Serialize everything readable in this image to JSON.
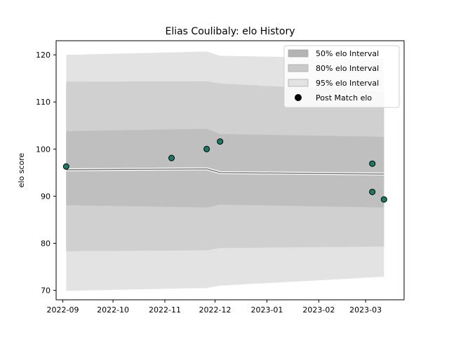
{
  "chart_data": {
    "type": "area",
    "title": "Elias Coulibaly: elo History",
    "xlabel": "",
    "ylabel": "elo score",
    "ylim": [
      68,
      123
    ],
    "xlim": [
      "2022-08-28",
      "2023-03-24"
    ],
    "x_ticks": [
      "2022-09",
      "2022-10",
      "2022-11",
      "2022-12",
      "2023-01",
      "2023-02",
      "2023-03"
    ],
    "y_ticks": [
      70,
      80,
      90,
      100,
      110,
      120
    ],
    "grid": false,
    "legend_placement": "top-right",
    "band_dates": [
      "2022-09-03",
      "2022-11-26",
      "2022-12-04",
      "2023-03-12"
    ],
    "mean": [
      95.6,
      95.8,
      95.0,
      94.7
    ],
    "bands": [
      {
        "name": "95% elo Interval",
        "color": "#e3e3e3",
        "upper": [
          120.0,
          120.7,
          119.8,
          119.2
        ],
        "lower": [
          69.9,
          70.5,
          71.0,
          72.9
        ]
      },
      {
        "name": "80% elo Interval",
        "color": "#d0d0d0",
        "upper": [
          114.3,
          114.4,
          113.9,
          112.2
        ],
        "lower": [
          78.3,
          78.5,
          79.0,
          79.3
        ]
      },
      {
        "name": "50% elo Interval",
        "color": "#bfbfbf",
        "upper": [
          103.8,
          104.3,
          103.2,
          102.6
        ],
        "lower": [
          88.1,
          87.6,
          88.2,
          87.6
        ]
      }
    ],
    "points": {
      "name": "Post Match elo",
      "color": "#1a7a6a",
      "dates": [
        "2022-09-03",
        "2022-11-05",
        "2022-11-26",
        "2022-12-04",
        "2023-03-05",
        "2023-03-05",
        "2023-03-12"
      ],
      "values": [
        96.3,
        98.1,
        100.0,
        101.6,
        96.9,
        90.9,
        89.3
      ]
    },
    "legend": [
      {
        "label": "50% elo Interval",
        "kind": "patch",
        "color": "#b4b4b4"
      },
      {
        "label": "80% elo Interval",
        "kind": "patch",
        "color": "#cacaca"
      },
      {
        "label": "95% elo Interval",
        "kind": "patch",
        "color": "#e3e3e3"
      },
      {
        "label": "Post Match elo",
        "kind": "marker",
        "color": "#000000"
      }
    ]
  }
}
